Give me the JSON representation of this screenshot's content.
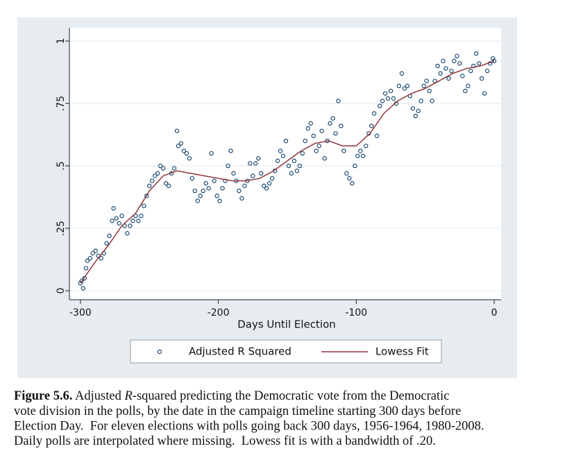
{
  "chart_data": {
    "type": "scatter",
    "xlabel": "Days Until Election",
    "xlim": [
      -308,
      5
    ],
    "ylim": [
      -0.036,
      1.053
    ],
    "xticks": [
      -300,
      -200,
      -100,
      0
    ],
    "yticks": [
      0,
      {
        "value": 0.25,
        "label": ".25"
      },
      {
        "value": 0.5,
        "label": ".5"
      },
      {
        "value": 0.75,
        "label": ".75"
      },
      1
    ],
    "grid": true,
    "series": [
      {
        "name": "Adjusted R Squared",
        "type": "scatter",
        "color": "#1a476f",
        "x": [
          -300,
          -299,
          -298,
          -297,
          -296,
          -295,
          -293,
          -291,
          -289,
          -287,
          -285,
          -283,
          -281,
          -279,
          -277,
          -276,
          -274,
          -272,
          -270,
          -268,
          -266,
          -264,
          -262,
          -260,
          -258,
          -256,
          -254,
          -252,
          -250,
          -248,
          -246,
          -244,
          -242,
          -240,
          -238,
          -236,
          -234,
          -232,
          -230,
          -229,
          -227,
          -225,
          -223,
          -221,
          -219,
          -217,
          -215,
          -213,
          -211,
          -209,
          -207,
          -205,
          -203,
          -201,
          -199,
          -197,
          -195,
          -193,
          -191,
          -189,
          -187,
          -185,
          -183,
          -181,
          -179,
          -177,
          -175,
          -173,
          -171,
          -169,
          -167,
          -165,
          -163,
          -161,
          -159,
          -157,
          -155,
          -153,
          -151,
          -149,
          -147,
          -145,
          -143,
          -141,
          -139,
          -137,
          -135,
          -133,
          -131,
          -129,
          -127,
          -125,
          -123,
          -121,
          -119,
          -117,
          -115,
          -113,
          -111,
          -109,
          -107,
          -105,
          -103,
          -101,
          -99,
          -97,
          -95,
          -93,
          -91,
          -89,
          -87,
          -85,
          -83,
          -81,
          -79,
          -77,
          -75,
          -73,
          -71,
          -69,
          -67,
          -65,
          -63,
          -61,
          -59,
          -57,
          -55,
          -53,
          -51,
          -49,
          -47,
          -45,
          -43,
          -41,
          -39,
          -37,
          -35,
          -33,
          -31,
          -29,
          -27,
          -25,
          -23,
          -21,
          -19,
          -17,
          -15,
          -13,
          -11,
          -9,
          -7,
          -5,
          -3,
          -1,
          0
        ],
        "values": [
          0.03,
          0.04,
          0.01,
          0.05,
          0.09,
          0.12,
          0.13,
          0.15,
          0.16,
          0.14,
          0.13,
          0.15,
          0.19,
          0.22,
          0.28,
          0.33,
          0.29,
          0.27,
          0.3,
          0.26,
          0.23,
          0.26,
          0.28,
          0.3,
          0.28,
          0.3,
          0.34,
          0.38,
          0.42,
          0.44,
          0.46,
          0.47,
          0.5,
          0.49,
          0.43,
          0.42,
          0.47,
          0.49,
          0.64,
          0.58,
          0.59,
          0.56,
          0.55,
          0.53,
          0.45,
          0.4,
          0.36,
          0.38,
          0.4,
          0.43,
          0.41,
          0.55,
          0.44,
          0.38,
          0.36,
          0.41,
          0.44,
          0.5,
          0.56,
          0.47,
          0.44,
          0.4,
          0.37,
          0.42,
          0.44,
          0.51,
          0.46,
          0.51,
          0.53,
          0.47,
          0.42,
          0.41,
          0.43,
          0.45,
          0.48,
          0.52,
          0.56,
          0.54,
          0.6,
          0.5,
          0.47,
          0.52,
          0.48,
          0.5,
          0.55,
          0.6,
          0.65,
          0.67,
          0.62,
          0.56,
          0.58,
          0.64,
          0.53,
          0.6,
          0.67,
          0.69,
          0.63,
          0.76,
          0.66,
          0.56,
          0.47,
          0.45,
          0.43,
          0.5,
          0.54,
          0.56,
          0.54,
          0.58,
          0.63,
          0.66,
          0.71,
          0.62,
          0.74,
          0.76,
          0.79,
          0.77,
          0.8,
          0.77,
          0.75,
          0.82,
          0.87,
          0.81,
          0.82,
          0.78,
          0.73,
          0.7,
          0.72,
          0.76,
          0.82,
          0.84,
          0.8,
          0.76,
          0.84,
          0.9,
          0.87,
          0.92,
          0.89,
          0.85,
          0.88,
          0.92,
          0.94,
          0.91,
          0.86,
          0.8,
          0.82,
          0.88,
          0.9,
          0.95,
          0.91,
          0.85,
          0.79,
          0.88,
          0.91,
          0.93,
          0.92
        ]
      },
      {
        "name": "Lowess Fit",
        "type": "line",
        "color": "#90353b",
        "x": [
          -300,
          -290,
          -280,
          -270,
          -260,
          -250,
          -240,
          -230,
          -220,
          -210,
          -200,
          -190,
          -180,
          -170,
          -160,
          -150,
          -140,
          -130,
          -120,
          -110,
          -100,
          -90,
          -80,
          -70,
          -60,
          -50,
          -40,
          -30,
          -20,
          -10,
          0
        ],
        "values": [
          0.03,
          0.11,
          0.18,
          0.26,
          0.31,
          0.4,
          0.46,
          0.48,
          0.47,
          0.46,
          0.45,
          0.44,
          0.44,
          0.45,
          0.48,
          0.52,
          0.56,
          0.59,
          0.6,
          0.58,
          0.58,
          0.63,
          0.71,
          0.76,
          0.79,
          0.81,
          0.84,
          0.87,
          0.89,
          0.9,
          0.92
        ]
      }
    ]
  },
  "caption": {
    "label": "Figure 5.6.",
    "line1": [
      " Adjusted ",
      "R",
      "-squared predicting the Democratic vote from the Democratic"
    ],
    "lines": [
      "vote division in the polls, by the date in the campaign timeline starting 300 days before",
      "Election Day.  For eleven elections with polls going back 300 days, 1956-1964, 1980-2008.",
      "Daily polls are interpolated where missing.  Lowess fit is with a bandwidth of .20."
    ]
  }
}
